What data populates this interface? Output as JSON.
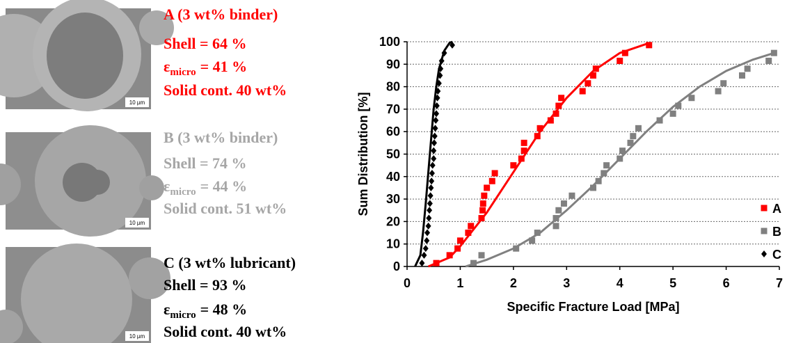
{
  "panels": [
    {
      "title": "A (3 wt% binder)",
      "shell": "Shell = 64 %",
      "eps_symbol": "ε",
      "eps_sub": "micro",
      "eps_value": "= 41 %",
      "solid": "Solid cont. 40 wt%",
      "scale": "10 µm",
      "color": "#ff0000"
    },
    {
      "title": "B (3 wt% binder)",
      "shell": "Shell = 74 %",
      "eps_symbol": "ε",
      "eps_sub": "micro",
      "eps_value": "= 44 %",
      "solid": "Solid cont. 51 wt%",
      "scale": "10 µm",
      "color": "#a6a6a6"
    },
    {
      "title": "C (3 wt% lubricant)",
      "shell": "Shell = 93 %",
      "eps_symbol": "ε",
      "eps_sub": "micro",
      "eps_value": "= 48 %",
      "solid": "Solid cont. 40 wt%",
      "scale": "10 µm",
      "color": "#000000"
    }
  ],
  "chart_data": {
    "type": "scatter",
    "x_label": "Specific Fracture Load [MPa]",
    "y_label": "Sum Distribution [%]",
    "xlim": [
      0,
      7
    ],
    "xticks": [
      0,
      1,
      2,
      3,
      4,
      5,
      6,
      7
    ],
    "ylim": [
      0,
      100
    ],
    "yticks": [
      0,
      10,
      20,
      30,
      40,
      50,
      60,
      70,
      80,
      90,
      100
    ],
    "grid": true,
    "legend": "lower right",
    "series": [
      {
        "name": "A",
        "color": "#ff0000",
        "marker": "square",
        "x": [
          0.55,
          0.8,
          0.95,
          1.0,
          1.15,
          1.2,
          1.4,
          1.42,
          1.43,
          1.45,
          1.5,
          1.6,
          1.65,
          2.0,
          2.15,
          2.2,
          2.2,
          2.45,
          2.5,
          2.7,
          2.8,
          2.85,
          2.9,
          3.3,
          3.4,
          3.5,
          3.55,
          4.0,
          4.1,
          4.55
        ],
        "values": [
          1.5,
          5,
          8,
          11.5,
          15,
          18,
          21.5,
          25,
          28,
          31.5,
          35,
          38,
          41.5,
          45,
          48,
          51.5,
          55,
          58,
          61.5,
          65,
          68,
          71.5,
          75,
          78,
          81.5,
          85,
          88,
          91.5,
          95,
          98.5
        ],
        "fit_x": [
          0.4,
          0.8,
          1.0,
          1.5,
          2.0,
          2.5,
          3.0,
          3.5,
          4.0,
          4.5
        ],
        "fit_y": [
          0,
          4,
          9,
          24,
          42,
          60,
          75,
          87,
          95,
          99
        ]
      },
      {
        "name": "B",
        "color": "#808080",
        "marker": "square",
        "x": [
          1.25,
          1.4,
          2.05,
          2.35,
          2.45,
          2.8,
          2.8,
          2.85,
          2.95,
          3.1,
          3.5,
          3.6,
          3.7,
          3.75,
          4.0,
          4.05,
          4.2,
          4.25,
          4.35,
          4.75,
          5.0,
          5.1,
          5.35,
          5.85,
          5.95,
          6.3,
          6.4,
          6.8,
          6.9
        ],
        "values": [
          1.5,
          5,
          8,
          11.5,
          15,
          18,
          21.5,
          25,
          28,
          31.5,
          35,
          38,
          41.5,
          45,
          48,
          51.5,
          55,
          58,
          61.5,
          65,
          68,
          71.5,
          75,
          78,
          81.5,
          85,
          88,
          91.5,
          95
        ],
        "fit_x": [
          1.1,
          1.5,
          2.0,
          2.5,
          3.0,
          3.5,
          4.0,
          4.5,
          5.0,
          5.5,
          6.0,
          6.5,
          6.9
        ],
        "fit_y": [
          0,
          3,
          8,
          15,
          25,
          36,
          48,
          60,
          71,
          80,
          87,
          92,
          95
        ]
      },
      {
        "name": "C",
        "color": "#000000",
        "marker": "diamond",
        "x": [
          0.28,
          0.32,
          0.35,
          0.37,
          0.38,
          0.4,
          0.41,
          0.42,
          0.43,
          0.44,
          0.45,
          0.46,
          0.47,
          0.48,
          0.5,
          0.5,
          0.51,
          0.52,
          0.53,
          0.54,
          0.55,
          0.56,
          0.57,
          0.58,
          0.6,
          0.62,
          0.63,
          0.65,
          0.7,
          0.85
        ],
        "values": [
          1.5,
          5,
          8,
          11.5,
          15,
          18,
          21.5,
          25,
          28,
          31.5,
          35,
          38,
          41.5,
          45,
          48,
          51.5,
          55,
          58,
          61.5,
          65,
          68,
          71.5,
          75,
          78,
          81.5,
          85,
          88,
          91.5,
          95,
          98.5
        ],
        "fit_x": [
          0.15,
          0.25,
          0.3,
          0.35,
          0.4,
          0.45,
          0.5,
          0.55,
          0.6,
          0.7,
          0.8,
          0.85
        ],
        "fit_y": [
          0,
          5,
          15,
          28,
          42,
          56,
          70,
          80,
          88,
          96,
          99.5,
          100
        ]
      }
    ]
  }
}
